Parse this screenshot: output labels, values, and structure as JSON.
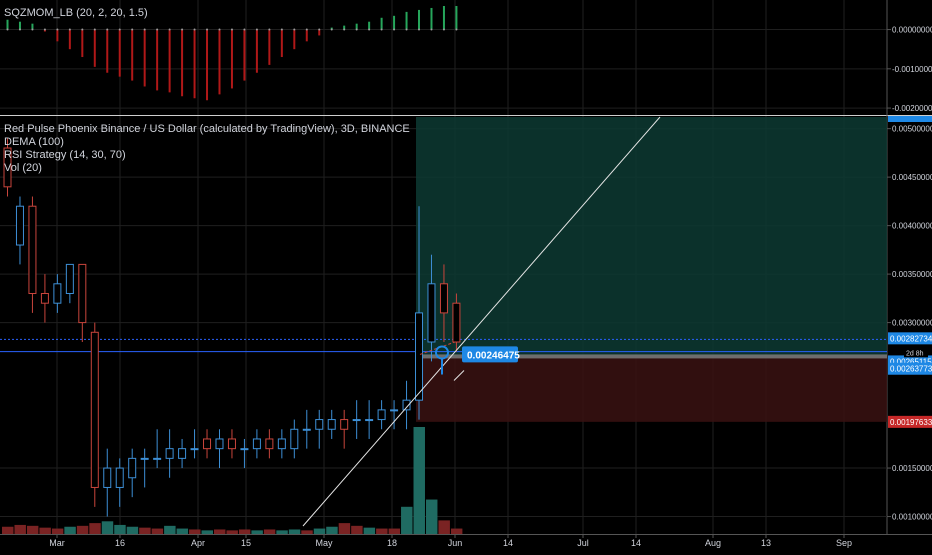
{
  "colors": {
    "background": "#000000",
    "grid": "#1f1f1f",
    "text": "#d1d4dc",
    "bull": "#3d8fd6",
    "bear": "#c9453c",
    "mom_green": "#26a65b",
    "mom_red": "#b01818",
    "profit_zone": "#0d3a33",
    "loss_zone": "#3a1212",
    "blue_line": "#2962ff",
    "entry_label": "#1e88e5",
    "vol_up": "#1f6b62",
    "vol_down": "#7a2323"
  },
  "legends": {
    "indicator": "SQZMOM_LB (20, 2, 20, 1.5)",
    "symbol": "Red Pulse Phoenix Binance / US Dollar (calculated by TradingView), 3D, BINANCE",
    "dema": "DEMA (100)",
    "rsi": "RSI Strategy (14, 30, 70)",
    "vol": "Vol (20)"
  },
  "position_label": "0.00246475",
  "chart_data": [
    {
      "type": "bar",
      "name": "SQZMOM_LB (20, 2, 20, 1.5)",
      "ylim": [
        -0.0021,
        0.0006
      ],
      "y_ticks": [
        {
          "value": 0.0,
          "label": "0.00000000"
        },
        {
          "value": -0.001,
          "label": "-0.00100000"
        },
        {
          "value": -0.002,
          "label": "-0.00200000"
        }
      ],
      "values": [
        0.00025,
        0.0002,
        0.00015,
        -5e-05,
        -0.0003,
        -0.0005,
        -0.0007,
        -0.00095,
        -0.0011,
        -0.0012,
        -0.0013,
        -0.00145,
        -0.00155,
        -0.0016,
        -0.0017,
        -0.00175,
        -0.0018,
        -0.00165,
        -0.0015,
        -0.0013,
        -0.0011,
        -0.0009,
        -0.0007,
        -0.0005,
        -0.0003,
        -0.00015,
        5e-05,
        0.0001,
        0.00015,
        0.0002,
        0.0003,
        0.00035,
        0.00045,
        0.0005,
        0.00055,
        0.0006,
        0.0006
      ]
    },
    {
      "type": "candlestick",
      "name": "Red Pulse Phoenix Binance / US Dollar",
      "ylim": [
        0.00082,
        0.00512
      ],
      "y_ticks": [
        {
          "value": 0.005,
          "label": "0.00500000"
        },
        {
          "value": 0.0045,
          "label": "0.00450000"
        },
        {
          "value": 0.004,
          "label": "0.00400000"
        },
        {
          "value": 0.0035,
          "label": "0.00350000"
        },
        {
          "value": 0.003,
          "label": "0.00300000"
        },
        {
          "value": 0.0015,
          "label": "0.00150000"
        },
        {
          "value": 0.001,
          "label": "0.00100000"
        }
      ],
      "x_ticks": [
        "Mar",
        "16",
        "Apr",
        "15",
        "May",
        "18",
        "Jun",
        "14",
        "Jul",
        "14",
        "Aug",
        "13",
        "Sep"
      ],
      "candles": [
        {
          "o": 0.0048,
          "h": 0.0049,
          "l": 0.0043,
          "c": 0.0044
        },
        {
          "o": 0.0038,
          "h": 0.0043,
          "l": 0.0036,
          "c": 0.0042
        },
        {
          "o": 0.0042,
          "h": 0.0043,
          "l": 0.0031,
          "c": 0.0033
        },
        {
          "o": 0.0033,
          "h": 0.0035,
          "l": 0.003,
          "c": 0.0032
        },
        {
          "o": 0.0032,
          "h": 0.0035,
          "l": 0.0031,
          "c": 0.0034
        },
        {
          "o": 0.0033,
          "h": 0.0036,
          "l": 0.0032,
          "c": 0.0036
        },
        {
          "o": 0.0036,
          "h": 0.0036,
          "l": 0.0028,
          "c": 0.003
        },
        {
          "o": 0.0029,
          "h": 0.003,
          "l": 0.0011,
          "c": 0.0013
        },
        {
          "o": 0.0013,
          "h": 0.0017,
          "l": 0.001,
          "c": 0.0015
        },
        {
          "o": 0.0013,
          "h": 0.0016,
          "l": 0.0011,
          "c": 0.0015
        },
        {
          "o": 0.0014,
          "h": 0.0017,
          "l": 0.0012,
          "c": 0.0016
        },
        {
          "o": 0.0016,
          "h": 0.0017,
          "l": 0.0013,
          "c": 0.0016
        },
        {
          "o": 0.0016,
          "h": 0.0019,
          "l": 0.0015,
          "c": 0.0016
        },
        {
          "o": 0.0016,
          "h": 0.0019,
          "l": 0.0014,
          "c": 0.0017
        },
        {
          "o": 0.0016,
          "h": 0.0018,
          "l": 0.0015,
          "c": 0.0017
        },
        {
          "o": 0.0017,
          "h": 0.0019,
          "l": 0.0016,
          "c": 0.0017
        },
        {
          "o": 0.0018,
          "h": 0.0019,
          "l": 0.0016,
          "c": 0.0017
        },
        {
          "o": 0.0017,
          "h": 0.0019,
          "l": 0.0015,
          "c": 0.0018
        },
        {
          "o": 0.0018,
          "h": 0.0019,
          "l": 0.0016,
          "c": 0.0017
        },
        {
          "o": 0.0017,
          "h": 0.0018,
          "l": 0.0015,
          "c": 0.0017
        },
        {
          "o": 0.0017,
          "h": 0.0019,
          "l": 0.0016,
          "c": 0.0018
        },
        {
          "o": 0.0018,
          "h": 0.0019,
          "l": 0.0016,
          "c": 0.0017
        },
        {
          "o": 0.0017,
          "h": 0.0019,
          "l": 0.0016,
          "c": 0.0018
        },
        {
          "o": 0.0017,
          "h": 0.002,
          "l": 0.0016,
          "c": 0.0019
        },
        {
          "o": 0.0019,
          "h": 0.0021,
          "l": 0.0017,
          "c": 0.0019
        },
        {
          "o": 0.0019,
          "h": 0.0021,
          "l": 0.0017,
          "c": 0.002
        },
        {
          "o": 0.0019,
          "h": 0.0021,
          "l": 0.0018,
          "c": 0.002
        },
        {
          "o": 0.002,
          "h": 0.0021,
          "l": 0.0017,
          "c": 0.0019
        },
        {
          "o": 0.002,
          "h": 0.0022,
          "l": 0.0018,
          "c": 0.002
        },
        {
          "o": 0.002,
          "h": 0.0022,
          "l": 0.0018,
          "c": 0.002
        },
        {
          "o": 0.002,
          "h": 0.0022,
          "l": 0.0019,
          "c": 0.0021
        },
        {
          "o": 0.0021,
          "h": 0.0022,
          "l": 0.0019,
          "c": 0.0021
        },
        {
          "o": 0.0021,
          "h": 0.0024,
          "l": 0.0019,
          "c": 0.0022
        },
        {
          "o": 0.0022,
          "h": 0.0042,
          "l": 0.002,
          "c": 0.0031
        },
        {
          "o": 0.0028,
          "h": 0.0037,
          "l": 0.0026,
          "c": 0.0034
        },
        {
          "o": 0.0034,
          "h": 0.0036,
          "l": 0.0028,
          "c": 0.0031
        },
        {
          "o": 0.0032,
          "h": 0.0033,
          "l": 0.0027,
          "c": 0.0028
        }
      ],
      "volume": [
        {
          "v": 8,
          "up": false
        },
        {
          "v": 10,
          "up": false
        },
        {
          "v": 9,
          "up": false
        },
        {
          "v": 7,
          "up": false
        },
        {
          "v": 6,
          "up": false
        },
        {
          "v": 8,
          "up": true
        },
        {
          "v": 9,
          "up": false
        },
        {
          "v": 12,
          "up": false
        },
        {
          "v": 14,
          "up": true
        },
        {
          "v": 10,
          "up": true
        },
        {
          "v": 8,
          "up": true
        },
        {
          "v": 7,
          "up": false
        },
        {
          "v": 6,
          "up": false
        },
        {
          "v": 9,
          "up": true
        },
        {
          "v": 6,
          "up": true
        },
        {
          "v": 5,
          "up": false
        },
        {
          "v": 4,
          "up": true
        },
        {
          "v": 5,
          "up": false
        },
        {
          "v": 4,
          "up": false
        },
        {
          "v": 5,
          "up": false
        },
        {
          "v": 4,
          "up": true
        },
        {
          "v": 5,
          "up": false
        },
        {
          "v": 4,
          "up": true
        },
        {
          "v": 5,
          "up": true
        },
        {
          "v": 4,
          "up": false
        },
        {
          "v": 6,
          "up": true
        },
        {
          "v": 8,
          "up": true
        },
        {
          "v": 12,
          "up": false
        },
        {
          "v": 9,
          "up": false
        },
        {
          "v": 7,
          "up": true
        },
        {
          "v": 6,
          "up": false
        },
        {
          "v": 6,
          "up": false
        },
        {
          "v": 30,
          "up": true
        },
        {
          "v": 118,
          "up": true
        },
        {
          "v": 38,
          "up": true
        },
        {
          "v": 15,
          "up": false
        },
        {
          "v": 6,
          "up": false
        }
      ],
      "horizontal_lines": [
        {
          "value": 0.0027,
          "style": "solid"
        },
        {
          "value": 0.00282734,
          "style": "dotted"
        }
      ],
      "position": {
        "entry": 0.00265115,
        "target": 0.00512,
        "stop": 0.00197633,
        "entry_label": "0.00246475"
      },
      "price_labels": [
        {
          "value": 0.00282734,
          "label": "0.00282734"
        },
        {
          "value": 0.00265115,
          "label": "0.00265115"
        },
        {
          "value": 0.00263773,
          "label": "0.00263773"
        },
        {
          "value": 0.00197633,
          "label": "0.00197633"
        }
      ],
      "time_label": "2d 8h"
    }
  ]
}
